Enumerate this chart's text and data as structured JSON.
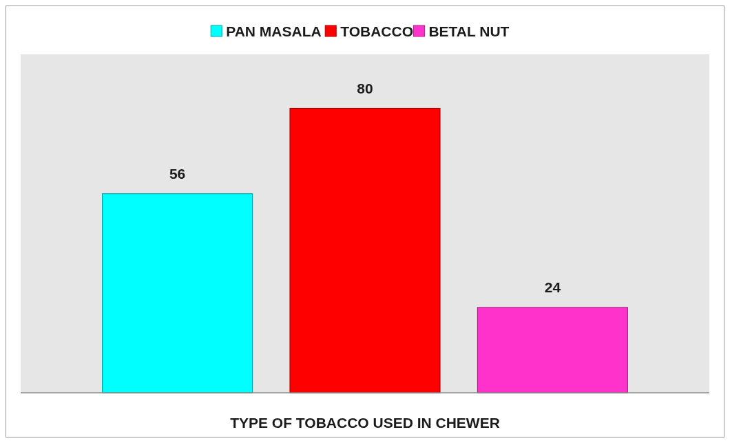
{
  "chart_data": {
    "type": "bar",
    "xlabel": "TYPE OF TOBACCO USED IN CHEWER",
    "categories": [
      null
    ],
    "series": [
      {
        "name": "PAN MASALA",
        "color": "#00ffff",
        "values": [
          56
        ]
      },
      {
        "name": "TOBACCO",
        "color": "#ff0000",
        "values": [
          80
        ]
      },
      {
        "name": "BETAL NUT",
        "color": "#ff33cc",
        "values": [
          24
        ]
      }
    ],
    "data_labels": true,
    "legend": "top"
  }
}
